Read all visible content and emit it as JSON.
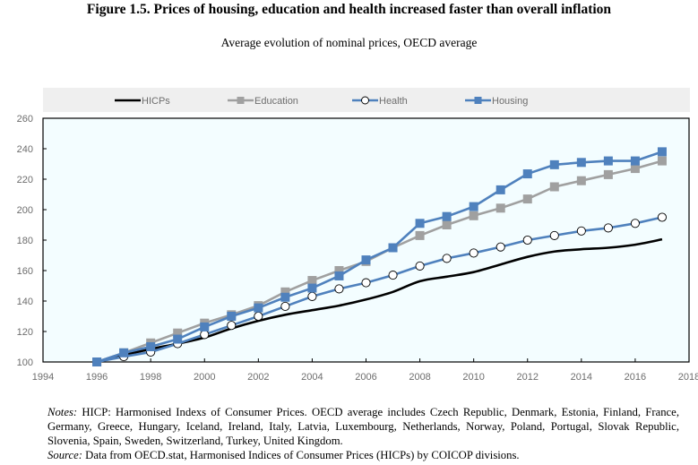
{
  "figure": {
    "title": "Figure 1.5. Prices of housing, education and health increased faster than overall inflation",
    "subtitle": "Average evolution of nominal prices, OECD average"
  },
  "notes": {
    "notes_label": "Notes:",
    "notes_text": "HICP: Harmonised Indexs of Consumer Prices. OECD average includes Czech Republic, Denmark, Estonia, Finland, France, Germany, Greece, Hungary, Iceland, Ireland, Italy, Latvia, Luxembourg, Netherlands, Norway, Poland, Portugal, Slovak Republic, Slovenia, Spain, Sweden, Switzerland, Turkey, United Kingdom.",
    "source_label": "Source:",
    "source_text": "Data from OECD.stat, Harmonised Indices of Consumer Prices (HICPs) by COICOP divisions."
  },
  "chart_data": {
    "type": "line",
    "title": "Average evolution of nominal prices, OECD average",
    "xlabel": "",
    "ylabel": "",
    "xlim": [
      1994,
      2018
    ],
    "ylim": [
      100,
      260
    ],
    "x_ticks": [
      1994,
      1996,
      1998,
      2000,
      2002,
      2004,
      2006,
      2008,
      2010,
      2012,
      2014,
      2016,
      2018
    ],
    "y_ticks": [
      100,
      120,
      140,
      160,
      180,
      200,
      220,
      240,
      260
    ],
    "grid": false,
    "legend_position": "top",
    "x": [
      1996,
      1997,
      1998,
      1999,
      2000,
      2001,
      2002,
      2003,
      2004,
      2005,
      2006,
      2007,
      2008,
      2009,
      2010,
      2011,
      2012,
      2013,
      2014,
      2015,
      2016,
      2017
    ],
    "series": [
      {
        "name": "HICPs",
        "color": "#000000",
        "marker": "none",
        "values": [
          100,
          104.5,
          108.5,
          112,
          116,
          122,
          127,
          131,
          134,
          137,
          141,
          146,
          153,
          156,
          159,
          164,
          169,
          172.5,
          174,
          175,
          177,
          180.5
        ]
      },
      {
        "name": "Education",
        "color": "#a0a0a0",
        "marker": "square",
        "values": [
          100,
          106,
          112.5,
          119,
          125.5,
          131,
          137,
          146,
          153.5,
          160,
          166,
          175,
          183,
          190,
          196,
          201,
          207,
          215,
          219,
          223,
          227,
          232
        ]
      },
      {
        "name": "Health",
        "color": "#4f81bd",
        "marker": "circle",
        "values": [
          100,
          103.5,
          106.5,
          112,
          118,
          124,
          130,
          136.5,
          143,
          148,
          152,
          157,
          163,
          168,
          171.5,
          175.5,
          180,
          183,
          186,
          188,
          191,
          195
        ]
      },
      {
        "name": "Housing",
        "color": "#4f81bd",
        "marker": "square",
        "values": [
          100,
          106,
          110,
          115,
          123,
          130,
          135.5,
          142.5,
          148.5,
          156.5,
          167,
          175,
          191,
          195.5,
          202,
          213,
          223.5,
          229.5,
          231,
          232,
          232,
          238
        ]
      }
    ]
  }
}
